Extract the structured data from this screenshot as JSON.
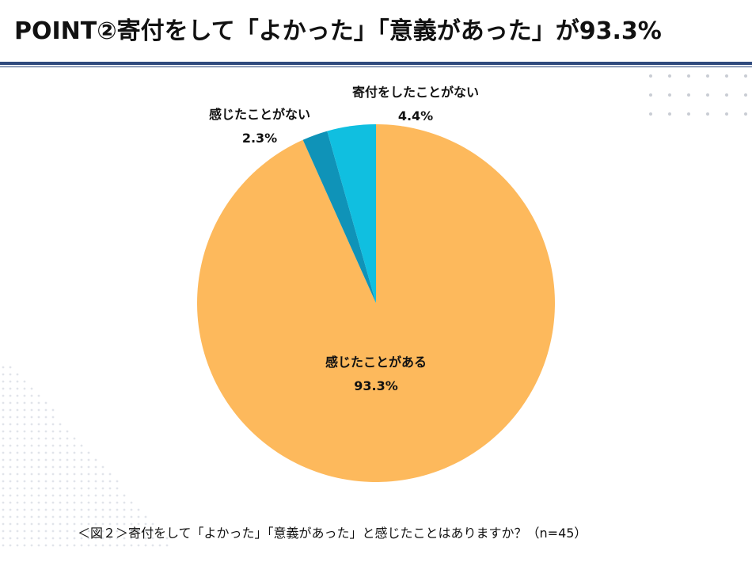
{
  "header": {
    "title": "POINT②寄付をして「よかった」「意義があった」が93.3%"
  },
  "caption": "＜図２＞寄付をして「よかった」「意義があった」と感じたことはありますか？（n=45）",
  "colors": {
    "accent_rule": "#2f4a7e",
    "slice_yes": "#fdb95c",
    "slice_no_felt": "#0f93b8",
    "slice_never_donated": "#10bfe0"
  },
  "chart_data": {
    "type": "pie",
    "title": "",
    "slices": [
      {
        "label": "感じたことがある",
        "value": 93.3,
        "display": "93.3%",
        "color": "#fdb95c"
      },
      {
        "label": "感じたことがない",
        "value": 2.3,
        "display": "2.3%",
        "color": "#0f93b8"
      },
      {
        "label": "寄付をしたことがない",
        "value": 4.4,
        "display": "4.4%",
        "color": "#10bfe0"
      }
    ]
  }
}
